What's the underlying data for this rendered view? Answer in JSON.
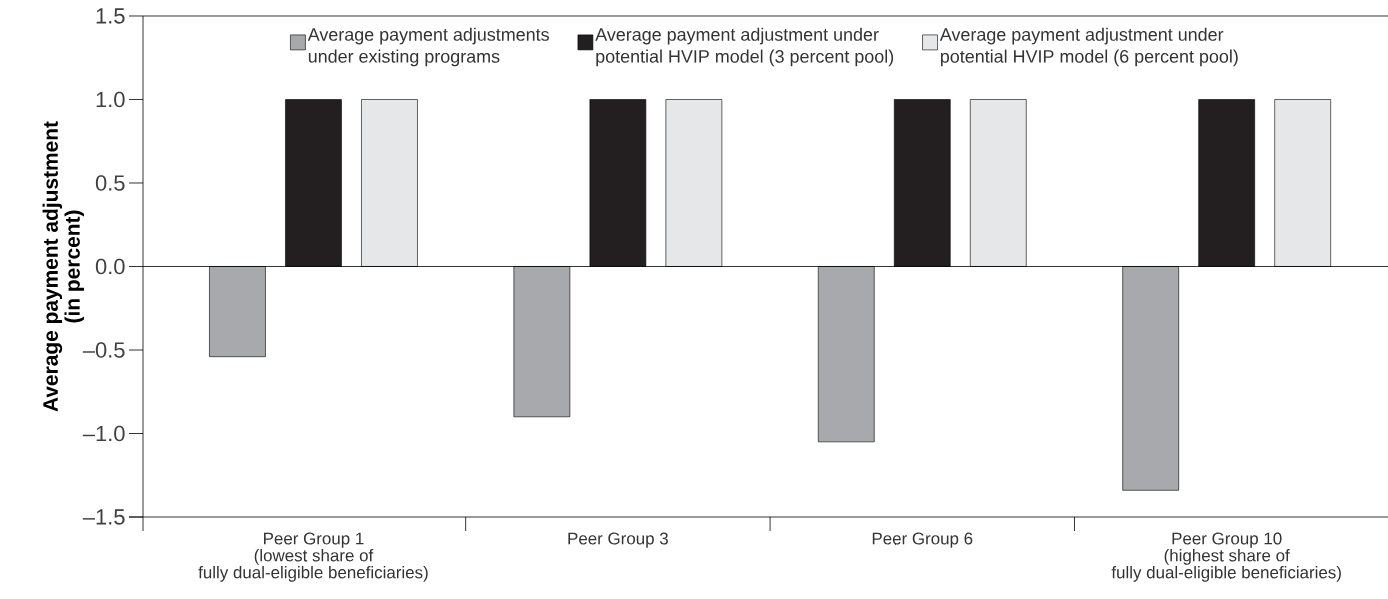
{
  "chart_data": {
    "type": "bar",
    "ylabel": "Average payment adjustment\n(in percent)",
    "categories": [
      "Peer Group 1\n(lowest share of\nfully dual-eligible beneficiaries)",
      "Peer Group 3",
      "Peer Group 6",
      "Peer Group 10\n(highest share of\nfully dual-eligible beneficiaries)"
    ],
    "series": [
      {
        "name": "Average payment adjustments\nunder existing programs",
        "color": "#a7a9ac",
        "values": [
          -0.54,
          -0.9,
          -1.05,
          -1.34
        ]
      },
      {
        "name": "Average payment adjustment under\npotential HVIP model (3 percent pool)",
        "color": "#231f20",
        "values": [
          1.0,
          1.0,
          1.0,
          1.0
        ]
      },
      {
        "name": "Average payment adjustment under\npotential HVIP model (6 percent pool)",
        "color": "#e6e7e8",
        "values": [
          1.0,
          1.0,
          1.0,
          1.0
        ]
      }
    ],
    "ylim": [
      -1.5,
      1.5
    ],
    "yticks": [
      {
        "value": -1.5,
        "label": "–1.5"
      },
      {
        "value": -1.0,
        "label": "–1.0"
      },
      {
        "value": -0.5,
        "label": "–0.5"
      },
      {
        "value": 0,
        "label": "0.0"
      },
      {
        "value": 0.5,
        "label": "0.5"
      },
      {
        "value": 1.0,
        "label": "1.0"
      },
      {
        "value": 1.5,
        "label": "1.5"
      }
    ],
    "ref_lines": [
      {
        "axis": "y",
        "value": 0
      }
    ],
    "legend": "top",
    "grid": false
  }
}
